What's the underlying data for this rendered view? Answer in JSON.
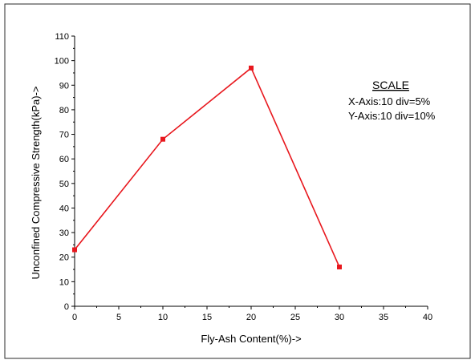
{
  "chart_data": {
    "type": "line",
    "xlabel": "Fly-Ash Content(%)->",
    "ylabel": "Unconfined Compressive Strength(kPa)->",
    "xlim": [
      0,
      40
    ],
    "ylim": [
      0,
      110
    ],
    "x_ticks": [
      0,
      5,
      10,
      15,
      20,
      25,
      30,
      35,
      40
    ],
    "y_ticks": [
      0,
      10,
      20,
      30,
      40,
      50,
      60,
      70,
      80,
      90,
      100,
      110
    ],
    "grid": false,
    "series": [
      {
        "color": "#e8181e",
        "marker": "square",
        "x": [
          0,
          10,
          20,
          30
        ],
        "y": [
          23,
          68,
          97,
          16
        ]
      }
    ],
    "annotation": {
      "title": "SCALE",
      "lines": [
        "X-Axis:10 div=5%",
        "Y-Axis:10 div=10%"
      ]
    }
  }
}
